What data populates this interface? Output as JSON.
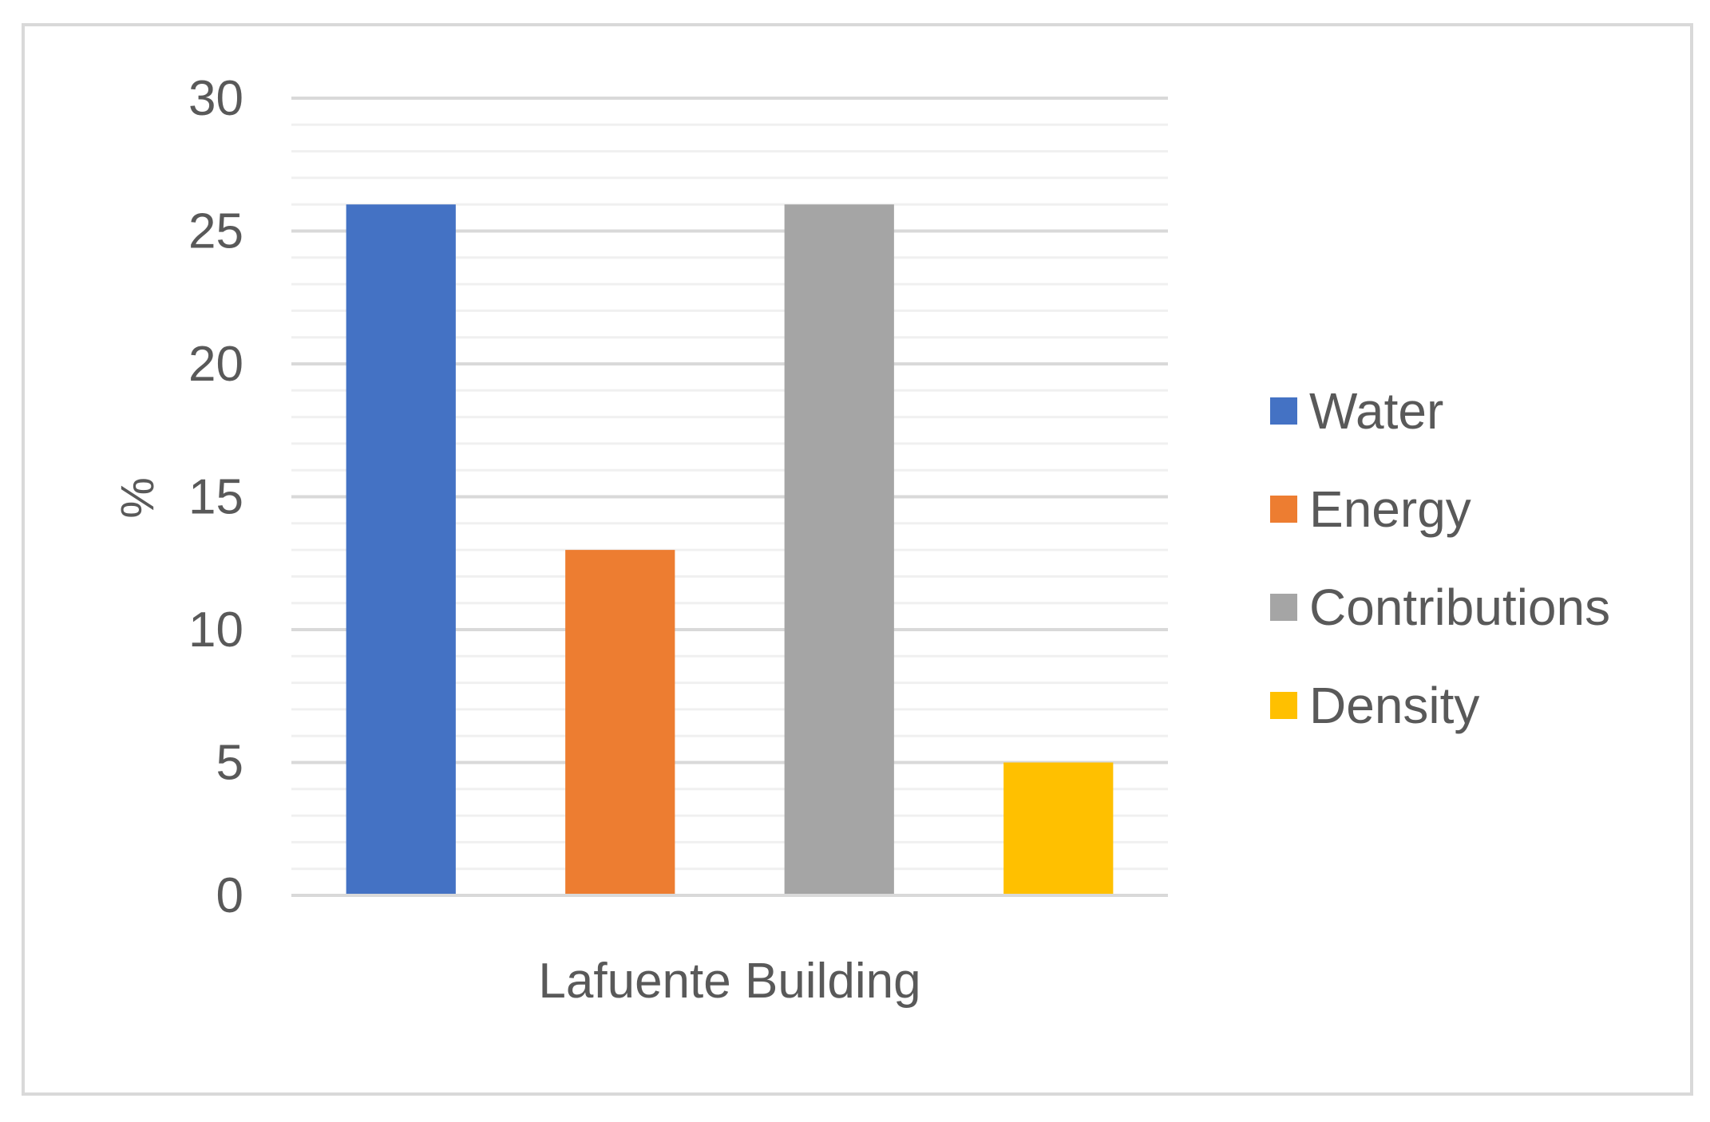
{
  "chart_data": {
    "type": "bar",
    "categories": [
      "Lafuente Building"
    ],
    "series": [
      {
        "name": "Water",
        "values": [
          26
        ],
        "color": "#4472C4"
      },
      {
        "name": "Energy",
        "values": [
          13
        ],
        "color": "#ED7D31"
      },
      {
        "name": "Contributions",
        "values": [
          26
        ],
        "color": "#A5A5A5"
      },
      {
        "name": "Density",
        "values": [
          5
        ],
        "color": "#FFC000"
      }
    ],
    "title": "",
    "xlabel": "",
    "ylabel": "%",
    "ylim": [
      0,
      30
    ],
    "yticks": [
      "0",
      "5",
      "10",
      "15",
      "20",
      "25",
      "30"
    ],
    "grid": true,
    "legend_position": "right"
  }
}
